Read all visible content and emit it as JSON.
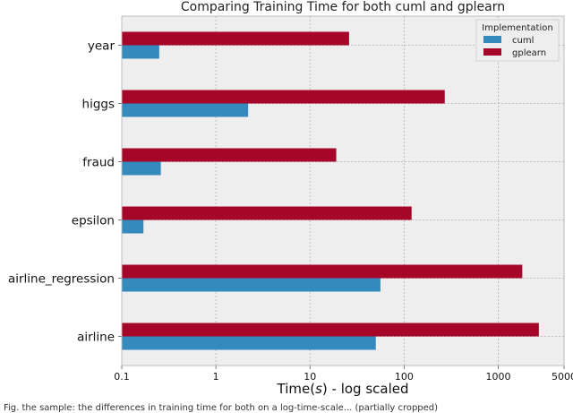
{
  "chart_data": {
    "type": "bar",
    "orientation": "horizontal",
    "title": "Comparing Training Time for both cuml and gplearn",
    "xlabel": "Time($s$) - log scaled",
    "ylabel": "",
    "xscale": "log",
    "xlim": [
      0.1,
      5000
    ],
    "xticks": [
      {
        "value": 0.1,
        "label": "0.1"
      },
      {
        "value": 1,
        "label": "1"
      },
      {
        "value": 10,
        "label": "10"
      },
      {
        "value": 100,
        "label": "100"
      },
      {
        "value": 1000,
        "label": "1000"
      },
      {
        "value": 5000,
        "label": "5000"
      }
    ],
    "grid": true,
    "categories": [
      "year",
      "higgs",
      "fraud",
      "epsilon",
      "airline_regression",
      "airline"
    ],
    "series": [
      {
        "name": "cuml",
        "color": "#348ABD",
        "values": [
          0.25,
          2.2,
          0.26,
          0.17,
          56,
          50
        ]
      },
      {
        "name": "gplearn",
        "color": "#A60628",
        "values": [
          26,
          270,
          19,
          120,
          1800,
          2700
        ]
      }
    ],
    "legend": {
      "title": "Implementation",
      "placement": "top-right"
    }
  },
  "caption": {
    "text": "Fig. the sample: the differences in training time for both on a log-time-scale... (partially cropped)"
  }
}
